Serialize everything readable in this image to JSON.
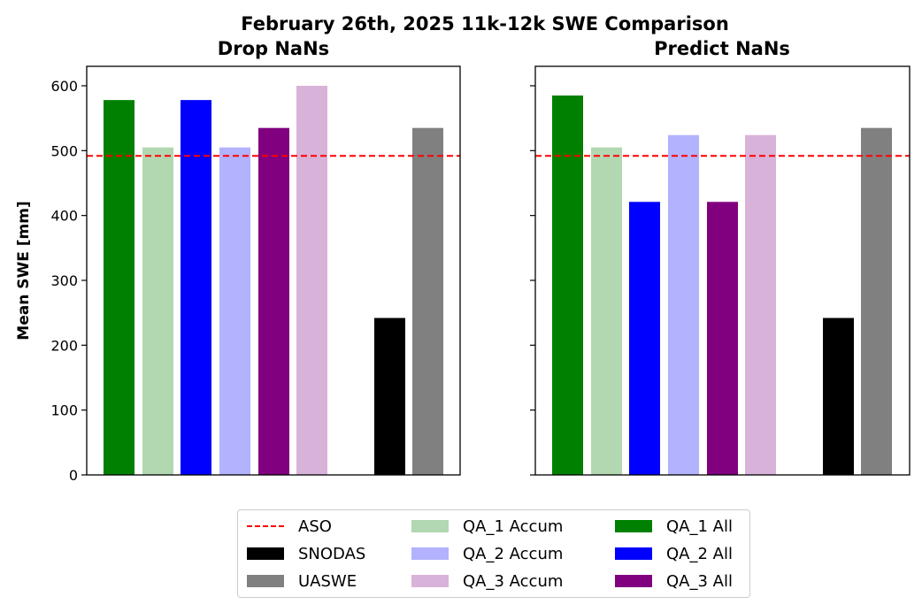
{
  "title": "February 26th, 2025 11k-12k SWE Comparison",
  "ylabel": "Mean SWE [mm]",
  "legend": {
    "placement": "bottom-center",
    "items": [
      {
        "label": "ASO",
        "color": "#ff0000",
        "style": "dashed-line"
      },
      {
        "label": "SNODAS",
        "color": "#000000",
        "style": "patch"
      },
      {
        "label": "UASWE",
        "color": "#808080",
        "style": "patch"
      },
      {
        "label": "QA_1 Accum",
        "color": "#b2d8b2",
        "style": "patch"
      },
      {
        "label": "QA_2 Accum",
        "color": "#b2b2ff",
        "style": "patch"
      },
      {
        "label": "QA_3 Accum",
        "color": "#d8b2d8",
        "style": "patch"
      },
      {
        "label": "QA_1 All",
        "color": "#008000",
        "style": "patch"
      },
      {
        "label": "QA_2 All",
        "color": "#0000ff",
        "style": "patch"
      },
      {
        "label": "QA_3 All",
        "color": "#800080",
        "style": "patch"
      }
    ]
  },
  "chart_data": [
    {
      "type": "bar",
      "title": "Drop NaNs",
      "xlabel": "",
      "ylabel": "Mean SWE [mm]",
      "ylim": [
        0,
        630
      ],
      "yticks": [
        0,
        100,
        200,
        300,
        400,
        500,
        600
      ],
      "grid": false,
      "reference_line": {
        "name": "ASO",
        "value": 492,
        "color": "#ff0000",
        "style": "dashed"
      },
      "bars": [
        {
          "name": "QA_1 All",
          "value": 578,
          "color": "#008000"
        },
        {
          "name": "QA_1 Accum",
          "value": 505,
          "color": "#b2d8b2"
        },
        {
          "name": "QA_2 All",
          "value": 578,
          "color": "#0000ff"
        },
        {
          "name": "QA_2 Accum",
          "value": 505,
          "color": "#b2b2ff"
        },
        {
          "name": "QA_3 All",
          "value": 535,
          "color": "#800080"
        },
        {
          "name": "QA_3 Accum",
          "value": 600,
          "color": "#d8b2d8"
        },
        {
          "name": "SNODAS",
          "value": 242,
          "color": "#000000"
        },
        {
          "name": "UASWE",
          "value": 535,
          "color": "#808080"
        }
      ]
    },
    {
      "type": "bar",
      "title": "Predict NaNs",
      "xlabel": "",
      "ylabel": "",
      "ylim": [
        0,
        630
      ],
      "yticks": [
        0,
        100,
        200,
        300,
        400,
        500,
        600
      ],
      "grid": false,
      "reference_line": {
        "name": "ASO",
        "value": 492,
        "color": "#ff0000",
        "style": "dashed"
      },
      "bars": [
        {
          "name": "QA_1 All",
          "value": 585,
          "color": "#008000"
        },
        {
          "name": "QA_1 Accum",
          "value": 505,
          "color": "#b2d8b2"
        },
        {
          "name": "QA_2 All",
          "value": 421,
          "color": "#0000ff"
        },
        {
          "name": "QA_2 Accum",
          "value": 524,
          "color": "#b2b2ff"
        },
        {
          "name": "QA_3 All",
          "value": 421,
          "color": "#800080"
        },
        {
          "name": "QA_3 Accum",
          "value": 524,
          "color": "#d8b2d8"
        },
        {
          "name": "SNODAS",
          "value": 242,
          "color": "#000000"
        },
        {
          "name": "UASWE",
          "value": 535,
          "color": "#808080"
        }
      ]
    }
  ]
}
